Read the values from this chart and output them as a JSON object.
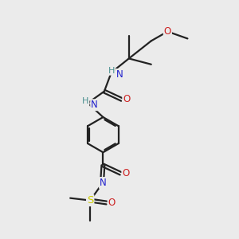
{
  "bg_color": "#ebebeb",
  "bond_color": "#222222",
  "atom_colors": {
    "NH_teal": "#4a9090",
    "N_blue": "#2020cc",
    "O_red": "#cc2020",
    "S_yellow": "#cccc00"
  },
  "figsize": [
    3.0,
    3.0
  ],
  "dpi": 100,
  "xlim": [
    0,
    10
  ],
  "ylim": [
    0,
    10
  ]
}
